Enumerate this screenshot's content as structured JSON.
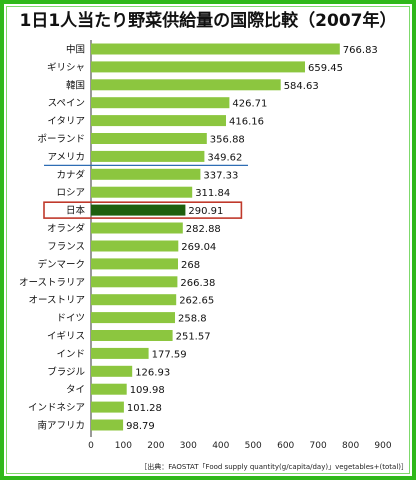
{
  "chart_data": {
    "type": "bar",
    "orientation": "horizontal",
    "title": "1日1人当たり野菜供給量の国際比較（2007年）",
    "categories": [
      "中国",
      "ギリシャ",
      "韓国",
      "スペイン",
      "イタリア",
      "ポーランド",
      "アメリカ",
      "カナダ",
      "ロシア",
      "日本",
      "オランダ",
      "フランス",
      "デンマーク",
      "オーストラリア",
      "オーストリア",
      "ドイツ",
      "イギリス",
      "インド",
      "ブラジル",
      "タイ",
      "インドネシア",
      "南アフリカ"
    ],
    "values": [
      766.83,
      659.45,
      584.63,
      426.71,
      416.16,
      356.88,
      349.62,
      337.33,
      311.84,
      290.91,
      282.88,
      269.04,
      268,
      266.38,
      262.65,
      258.8,
      251.57,
      177.59,
      126.93,
      109.98,
      101.28,
      98.79
    ],
    "value_labels": [
      "766.83",
      "659.45",
      "584.63",
      "426.71",
      "416.16",
      "356.88",
      "349.62",
      "337.33",
      "311.84",
      "290.91",
      "282.88",
      "269.04",
      "268",
      "266.38",
      "262.65",
      "258.8",
      "251.57",
      "177.59",
      "126.93",
      "109.98",
      "101.28",
      "98.79"
    ],
    "highlight_category": "日本",
    "xticks": [
      "0",
      "100",
      "200",
      "300",
      "400",
      "500",
      "600",
      "700",
      "800",
      "900"
    ],
    "xlim": [
      0,
      900
    ],
    "grid": false,
    "colors": {
      "bar": "#8cc63f",
      "highlight_bar": "#1f5f0e",
      "highlight_box": "#c0392b",
      "divider_line": "#2e6db4",
      "frame": "#2fb81a"
    },
    "source": "［出典：FAOSTAT「Food supply quantity(g/capita/day)」vegetables+(total)］"
  }
}
